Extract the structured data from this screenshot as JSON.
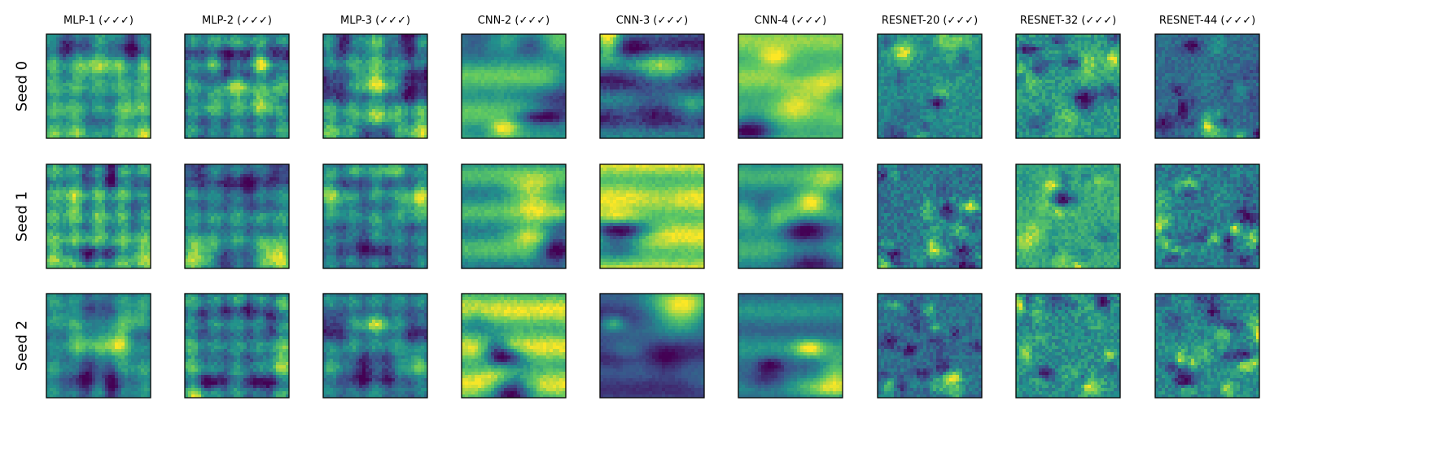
{
  "chart_data": {
    "type": "heatmap",
    "title": "",
    "columns": [
      {
        "label": "MLP-1 (✓✓✓)",
        "seed": 11,
        "style": "mlp"
      },
      {
        "label": "MLP-2 (✓✓✓)",
        "seed": 23,
        "style": "mlp"
      },
      {
        "label": "MLP-3 (✓✓✓)",
        "seed": 37,
        "style": "mlp"
      },
      {
        "label": "CNN-2 (✓✓✓)",
        "seed": 41,
        "style": "cnn"
      },
      {
        "label": "CNN-3 (✓✓✓)",
        "seed": 53,
        "style": "cnn"
      },
      {
        "label": "CNN-4 (✓✓✓)",
        "seed": 67,
        "style": "cnn"
      },
      {
        "label": "RESNET-20 (✓✓✓)",
        "seed": 71,
        "style": "resnet"
      },
      {
        "label": "RESNET-32 (✓✓✓)",
        "seed": 89,
        "style": "resnet"
      },
      {
        "label": "RESNET-44 (✓✓✓)",
        "seed": 97,
        "style": "resnet"
      }
    ],
    "rows": [
      {
        "label": "Seed 0"
      },
      {
        "label": "Seed 1"
      },
      {
        "label": "Seed 2"
      }
    ],
    "grid_resolution": 32,
    "colormap": "viridis",
    "colormap_stops": [
      "#440154",
      "#3b528b",
      "#21918c",
      "#5ec962",
      "#fde725"
    ],
    "frame_color": "#000000"
  }
}
